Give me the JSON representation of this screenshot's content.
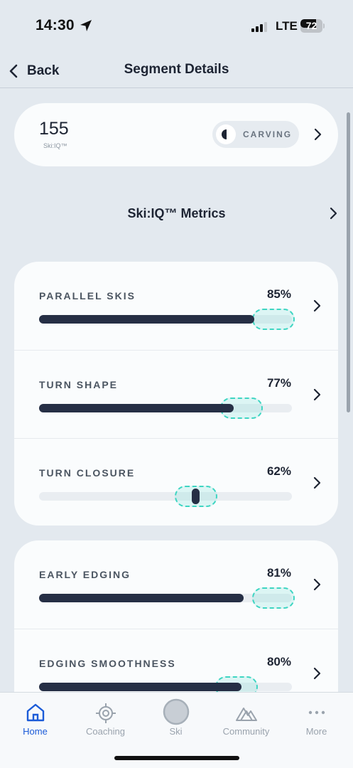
{
  "status": {
    "time": "14:30",
    "network": "LTE",
    "battery": "72",
    "battery_level": 0.72
  },
  "nav": {
    "back_label": "Back",
    "title": "Segment Details"
  },
  "summary": {
    "score": "155",
    "score_label": "Ski:IQ™",
    "style_label": "CARVING"
  },
  "section": {
    "title": "Ski:IQ™ Metrics"
  },
  "metrics_group_1": [
    {
      "name": "PARALLEL SKIS",
      "value": "85%",
      "fill_fraction": 0.85,
      "target_fraction": 0.93
    },
    {
      "name": "TURN SHAPE",
      "value": "77%",
      "fill_fraction": 0.77,
      "target_fraction": 0.8
    },
    {
      "name": "TURN CLOSURE",
      "value": "62%",
      "fill_fraction": 0.62,
      "target_fraction": 0.62
    }
  ],
  "metrics_group_2": [
    {
      "name": "EARLY EDGING",
      "value": "81%",
      "fill_fraction": 0.81,
      "target_fraction": 0.95
    },
    {
      "name": "EDGING SMOOTHNESS",
      "value": "80%",
      "fill_fraction": 0.8,
      "target_fraction": 0.78
    }
  ],
  "tabs": [
    {
      "label": "Home",
      "icon": "home-icon",
      "active": true
    },
    {
      "label": "Coaching",
      "icon": "target-icon",
      "active": false
    },
    {
      "label": "Ski",
      "icon": "ski-record-icon",
      "active": false
    },
    {
      "label": "Community",
      "icon": "mountains-icon",
      "active": false
    },
    {
      "label": "More",
      "icon": "more-icon",
      "active": false
    }
  ],
  "colors": {
    "accent": "#1b5bd8",
    "bar": "#262f45",
    "target": "#3ed5c2"
  }
}
